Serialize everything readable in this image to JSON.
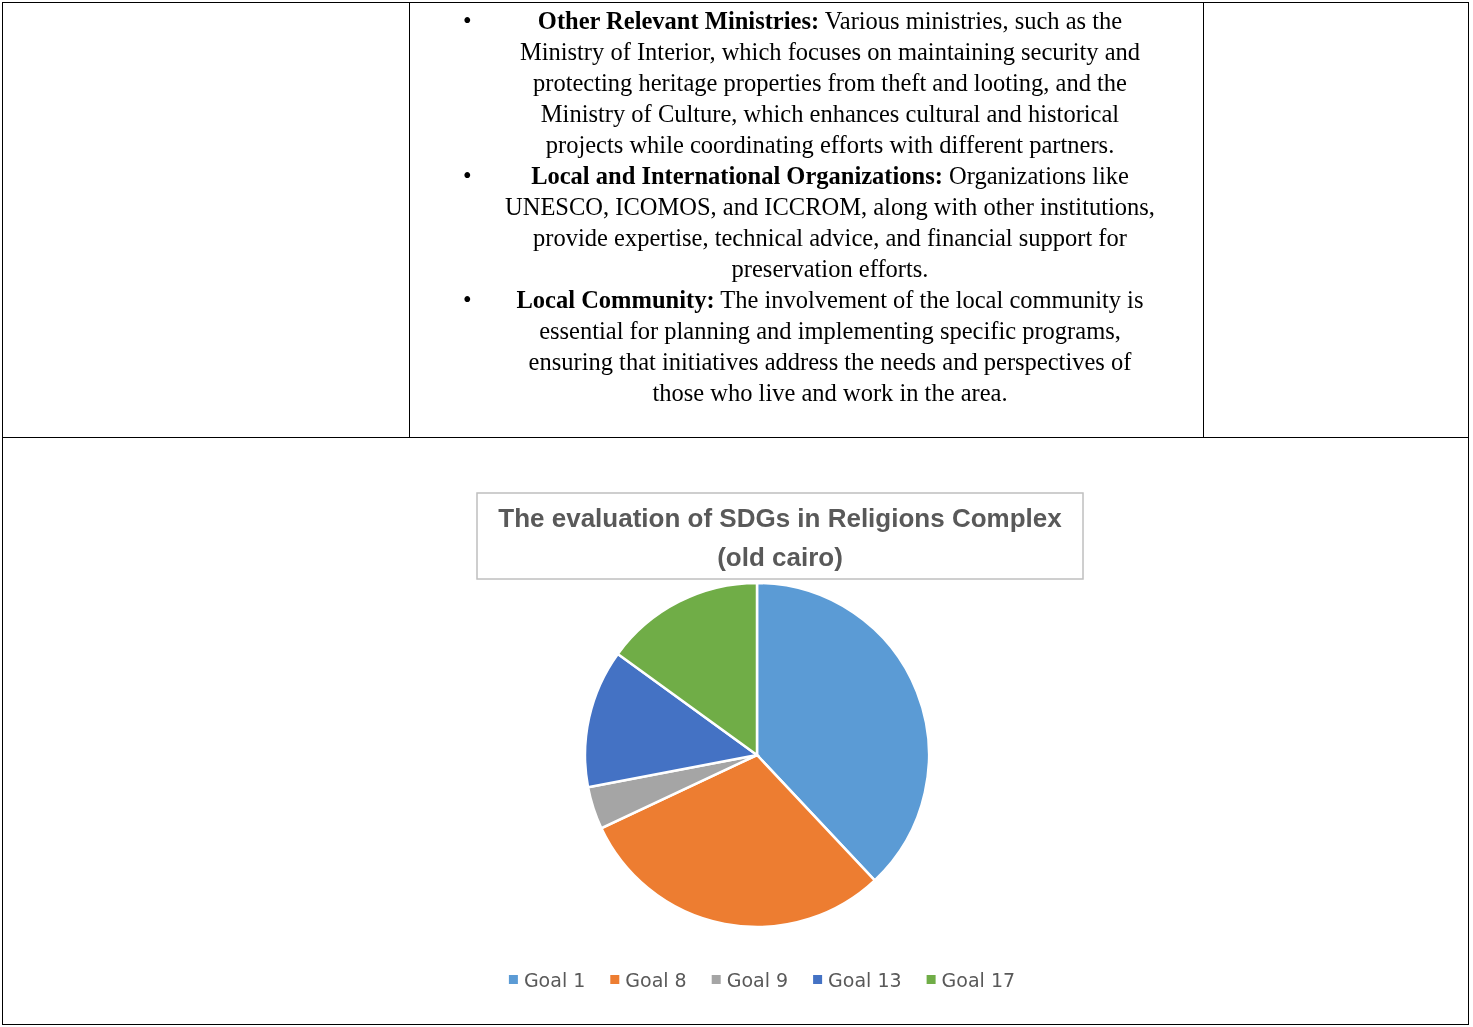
{
  "chart_data": {
    "type": "pie",
    "title": "The evaluation of SDGs in Religions Complex (old cairo)",
    "categories": [
      "Goal 1",
      "Goal 8",
      "Goal 9",
      "Goal 13",
      "Goal 17"
    ],
    "values": [
      38,
      30,
      4,
      13,
      15
    ],
    "colors": [
      "#5b9bd5",
      "#ed7d31",
      "#a5a5a5",
      "#4472c4",
      "#70ad47"
    ],
    "legend": "bottom",
    "annotations": [
      "• Other Relevant Ministries: Various ministries, such as the Ministry of Interior, which focuses on maintaining security and protecting heritage properties from theft and looting, and the Ministry of Culture, which enhances cultural and historical projects while coordinating efforts with different partners.",
      "• Local and International Organizations: Organizations like UNESCO, ICOMOS, and ICCROM, along with other institutions, provide expertise, technical advice, and financial support for preservation efforts.",
      "• Local Community: The involvement of the local community is essential for planning and implementing specific programs, ensuring that initiatives address the needs and perspectives of those who live and work in the area."
    ]
  }
}
